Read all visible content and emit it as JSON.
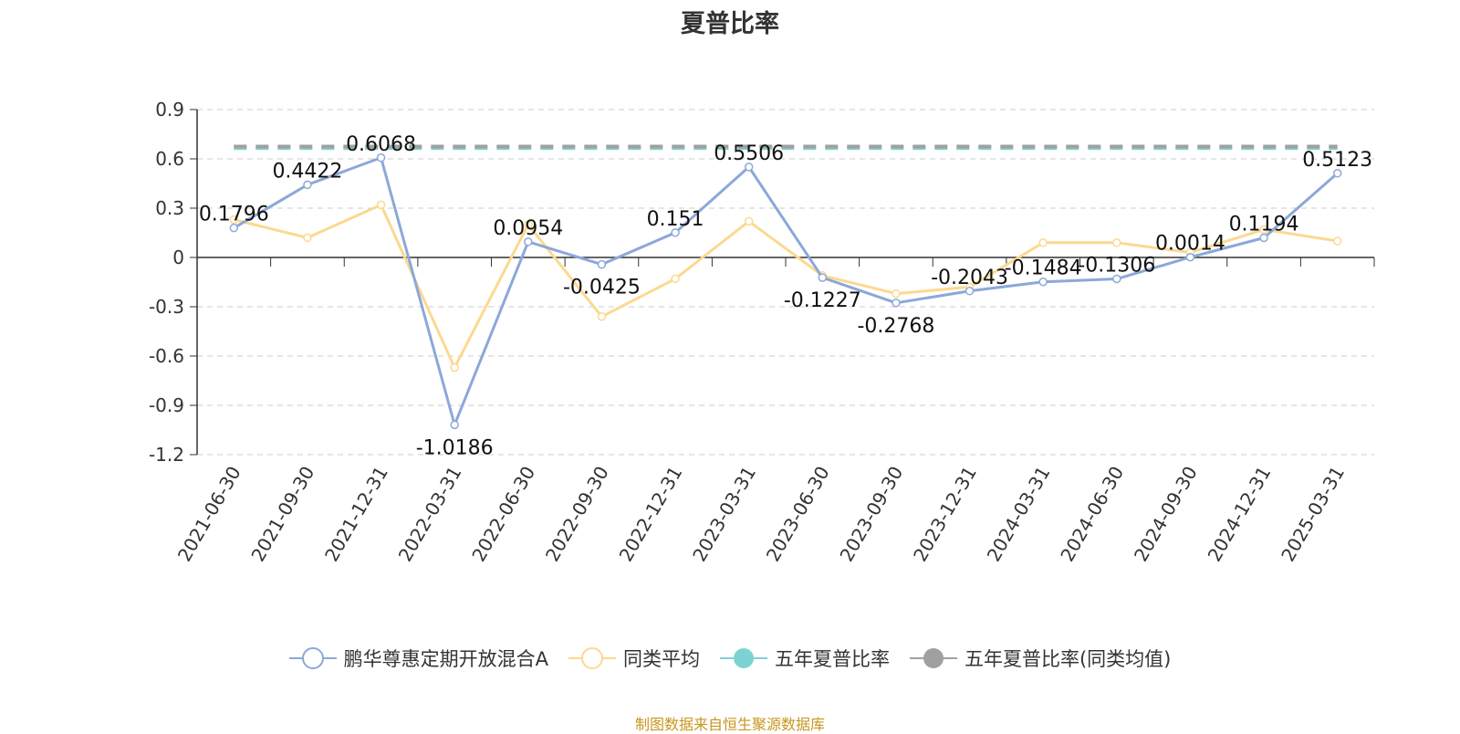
{
  "chart_data": {
    "type": "line",
    "title": "夏普比率",
    "categories": [
      "2021-06-30",
      "2021-09-30",
      "2021-12-31",
      "2022-03-31",
      "2022-06-30",
      "2022-09-30",
      "2022-12-31",
      "2023-03-31",
      "2023-06-30",
      "2023-09-30",
      "2023-12-31",
      "2024-03-31",
      "2024-06-30",
      "2024-09-30",
      "2024-12-31",
      "2025-03-31"
    ],
    "ylim": [
      -1.2,
      0.9
    ],
    "yticks": [
      "0.9",
      "0.6",
      "0.3",
      "0",
      "-0.3",
      "-0.6",
      "-0.9",
      "-1.2"
    ],
    "grid": true,
    "legend_position": "bottom",
    "series": [
      {
        "name": "鹏华尊惠定期开放混合A",
        "color": "#8ca8d8",
        "marker": "hollow-circle",
        "values": [
          0.1796,
          0.4422,
          0.6068,
          -1.0186,
          0.0954,
          -0.0425,
          0.151,
          0.5506,
          -0.1227,
          -0.2768,
          -0.2043,
          -0.1484,
          -0.1306,
          0.0014,
          0.1194,
          0.5123
        ],
        "labels": [
          "0.1796",
          "0.4422",
          "0.6068",
          "-1.0186",
          "0.0954",
          "-0.0425",
          "0.151",
          "0.5506",
          "-0.1227",
          "-0.2768",
          "-0.2043",
          "-0.1484",
          "-0.1306",
          "0.0014",
          "0.1194",
          "0.5123"
        ]
      },
      {
        "name": "同类平均",
        "color": "#fcd990",
        "marker": "hollow-circle",
        "values": [
          0.23,
          0.12,
          0.32,
          -0.67,
          0.2,
          -0.36,
          -0.13,
          0.22,
          -0.11,
          -0.22,
          -0.18,
          0.09,
          0.09,
          0.03,
          0.17,
          0.1
        ]
      },
      {
        "name": "五年夏普比率",
        "color": "#7dd3d3",
        "marker": "filled-circle",
        "style": "dashed",
        "constant": 0.665
      },
      {
        "name": "五年夏普比率(同类均值)",
        "color": "#a0a0a0",
        "marker": "filled-circle",
        "style": "dashed",
        "constant": 0.675
      }
    ]
  },
  "source_note": "制图数据来自恒生聚源数据库"
}
